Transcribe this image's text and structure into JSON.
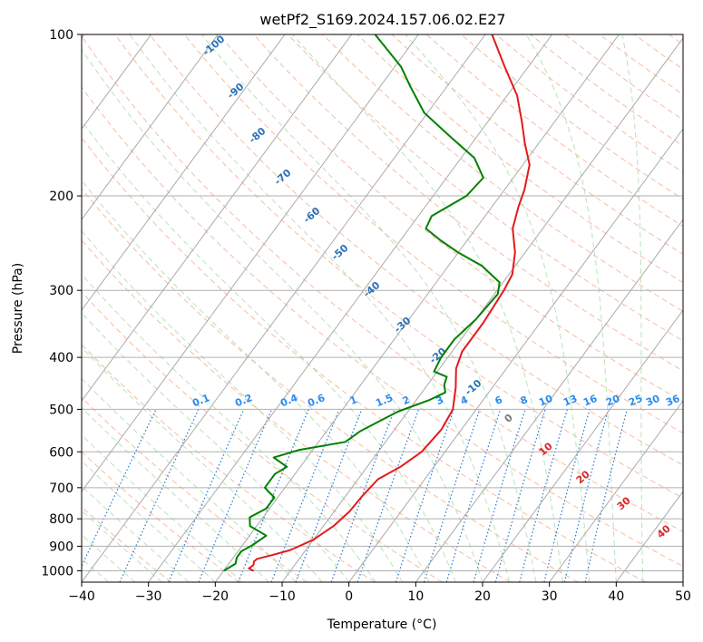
{
  "chart_data": {
    "type": "line",
    "title": "wetPf2_S169.2024.157.06.02.E27",
    "xlabel": "Temperature (°C)",
    "ylabel": "Pressure (hPa)",
    "xlim": [
      -40,
      50
    ],
    "ylim": [
      1050,
      100
    ],
    "y_scale": "log",
    "x_ticks": [
      -40,
      -30,
      -20,
      -10,
      0,
      10,
      20,
      30,
      40,
      50
    ],
    "y_ticks": [
      100,
      200,
      300,
      400,
      500,
      600,
      700,
      800,
      900,
      1000
    ],
    "grid": true,
    "skew": "skew-T",
    "colors": {
      "temperature": "#e31a1c",
      "dewpoint": "#008000",
      "dry_adiabat": "#f4a582",
      "moist_adiabat": "#b2dfb2",
      "mixing_ratio": "#1f78d4",
      "isotherm": "#999999",
      "label_blue": "#2c72b8",
      "label_red": "#d62728",
      "label_mixing": "#2a8cf0"
    },
    "series": [
      {
        "name": "",
        "role": "temperature",
        "points": [
          [
            1000,
            -15.5
          ],
          [
            990,
            -16.5
          ],
          [
            975,
            -16.2
          ],
          [
            960,
            -16.5
          ],
          [
            950,
            -16.3
          ],
          [
            935,
            -14.5
          ],
          [
            915,
            -12.3
          ],
          [
            875,
            -10.0
          ],
          [
            825,
            -8.5
          ],
          [
            775,
            -7.7
          ],
          [
            725,
            -7.5
          ],
          [
            675,
            -7.0
          ],
          [
            640,
            -5.0
          ],
          [
            600,
            -3.5
          ],
          [
            545,
            -3.0
          ],
          [
            500,
            -3.5
          ],
          [
            455,
            -5.5
          ],
          [
            420,
            -7.5
          ],
          [
            390,
            -8.5
          ],
          [
            345,
            -8.5
          ],
          [
            300,
            -9.0
          ],
          [
            280,
            -9.5
          ],
          [
            255,
            -11.5
          ],
          [
            230,
            -14.5
          ],
          [
            210,
            -16.0
          ],
          [
            195,
            -17.0
          ],
          [
            175,
            -19.0
          ],
          [
            160,
            -22.0
          ],
          [
            145,
            -25.0
          ],
          [
            130,
            -28.5
          ],
          [
            115,
            -33.5
          ],
          [
            100,
            -39.0
          ]
        ]
      },
      {
        "name": "",
        "role": "dewpoint",
        "points": [
          [
            1000,
            -20.0
          ],
          [
            985,
            -19.5
          ],
          [
            970,
            -19.0
          ],
          [
            945,
            -19.5
          ],
          [
            920,
            -19.5
          ],
          [
            895,
            -18.5
          ],
          [
            860,
            -17.5
          ],
          [
            825,
            -21.0
          ],
          [
            795,
            -22.0
          ],
          [
            765,
            -20.5
          ],
          [
            730,
            -20.5
          ],
          [
            700,
            -23.0
          ],
          [
            660,
            -23.0
          ],
          [
            640,
            -22.0
          ],
          [
            615,
            -25.0
          ],
          [
            595,
            -22.0
          ],
          [
            575,
            -16.0
          ],
          [
            550,
            -15.0
          ],
          [
            530,
            -13.5
          ],
          [
            505,
            -11.5
          ],
          [
            480,
            -8.0
          ],
          [
            465,
            -6.5
          ],
          [
            450,
            -7.5
          ],
          [
            435,
            -8.0
          ],
          [
            425,
            -10.5
          ],
          [
            400,
            -11.0
          ],
          [
            370,
            -11.0
          ],
          [
            340,
            -10.0
          ],
          [
            305,
            -9.5
          ],
          [
            290,
            -10.5
          ],
          [
            270,
            -15.0
          ],
          [
            255,
            -20.0
          ],
          [
            242,
            -24.0
          ],
          [
            230,
            -27.5
          ],
          [
            218,
            -28.0
          ],
          [
            200,
            -25.0
          ],
          [
            185,
            -24.5
          ],
          [
            170,
            -28.0
          ],
          [
            155,
            -34.0
          ],
          [
            140,
            -40.5
          ],
          [
            125,
            -45.5
          ],
          [
            115,
            -49.0
          ],
          [
            100,
            -56.5
          ]
        ]
      }
    ],
    "annotations": {
      "dry_adiabat_labels": [
        "-100",
        "-90",
        "-80",
        "-70",
        "-60",
        "-50",
        "-40",
        "-30",
        "-20",
        "-10",
        "0",
        "10",
        "20",
        "30",
        "40"
      ],
      "mixing_ratio_labels": [
        "0.1",
        "0.2",
        "0.4",
        "0.6",
        "1",
        "1.5",
        "2",
        "3",
        "4",
        "6",
        "8",
        "10",
        "13",
        "16",
        "20",
        "25",
        "30",
        "36"
      ]
    }
  }
}
